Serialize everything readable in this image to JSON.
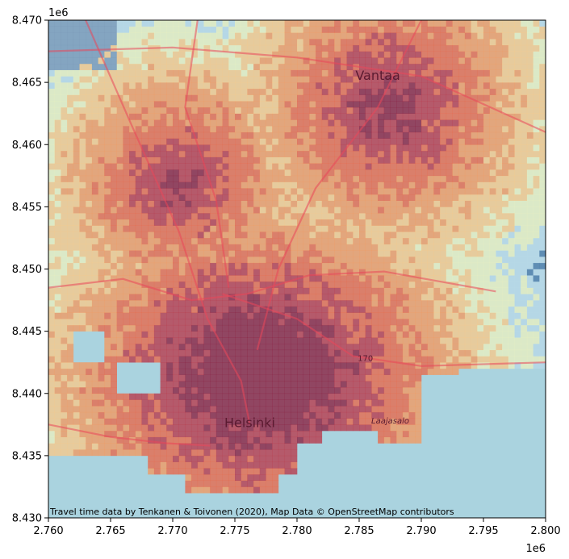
{
  "map": {
    "attribution": "Travel time data by Tenkanen & Toivonen (2020), Map Data © OpenStreetMap contributors",
    "x_axis": {
      "range": [
        2760000,
        2800000
      ],
      "ticks": [
        "2.760",
        "2.765",
        "2.770",
        "2.775",
        "2.780",
        "2.785",
        "2.790",
        "2.795",
        "2.800"
      ],
      "tick_values": [
        2760000,
        2765000,
        2770000,
        2775000,
        2780000,
        2785000,
        2790000,
        2795000,
        2800000
      ],
      "exponent": "1e6"
    },
    "y_axis": {
      "range": [
        8430000,
        8470000
      ],
      "ticks": [
        "8.430",
        "8.435",
        "8.440",
        "8.445",
        "8.450",
        "8.455",
        "8.460",
        "8.465",
        "8.470"
      ],
      "tick_values": [
        8430000,
        8435000,
        8440000,
        8445000,
        8450000,
        8455000,
        8460000,
        8465000,
        8470000
      ],
      "exponent": "1e6"
    },
    "places": [
      {
        "name": "Helsinki",
        "x": 2776200,
        "y": 8437300,
        "size": "large"
      },
      {
        "name": "Vantaa",
        "x": 2786500,
        "y": 8465200,
        "size": "large"
      },
      {
        "name": "Laajasalo",
        "x": 2787500,
        "y": 8437600,
        "size": "small"
      }
    ],
    "road_labels": [
      {
        "text": "170",
        "x": 2785500,
        "y": 8442600
      }
    ],
    "colors": {
      "sea": "#aad3df",
      "near": "#8b1f3f",
      "mid": "#e8684a",
      "far": "#f7c98a",
      "very_far": "#e9f0c0",
      "farthest": "#4a7aa8"
    }
  }
}
